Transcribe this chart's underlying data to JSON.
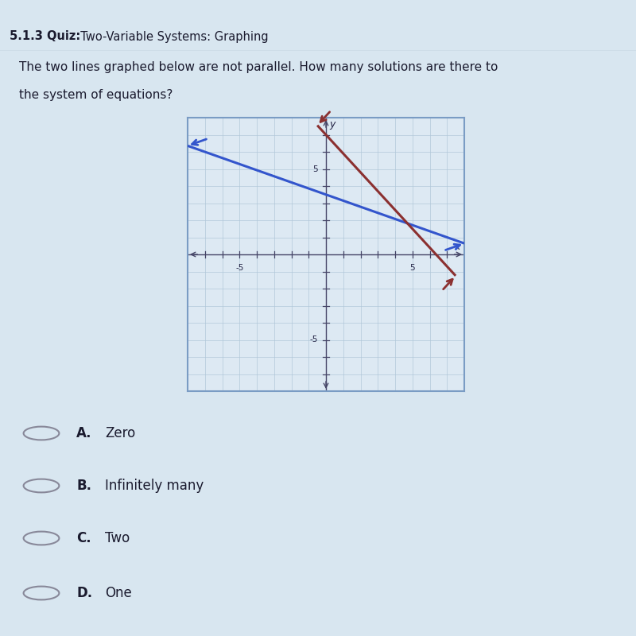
{
  "title_bar_text": "5.1.3 Quiz:  Two-Variable Systems: Graphing",
  "question_line1": "The two lines graphed below are not parallel. How many solutions are there to",
  "question_line2": "the system of equations?",
  "blue_line": {
    "color": "#3355cc",
    "slope": -0.357,
    "intercept": 3.5,
    "x_start": -8,
    "x_end": 8
  },
  "red_line": {
    "color": "#8B3030",
    "slope": -1.1,
    "intercept": 7.0,
    "x_start": -0.5,
    "x_end": 7.5
  },
  "xlim": [
    -8,
    8
  ],
  "ylim": [
    -8,
    8
  ],
  "grid_color": "#aec6d8",
  "bg_color": "#d8e6f0",
  "box_bg": "#dde9f3",
  "title_bg": "#5b7faa",
  "answers": [
    {
      "letter": "A.",
      "text": "Zero"
    },
    {
      "letter": "B.",
      "text": "Infinitely many"
    },
    {
      "letter": "C.",
      "text": "Two"
    },
    {
      "letter": "D.",
      "text": "One"
    }
  ]
}
